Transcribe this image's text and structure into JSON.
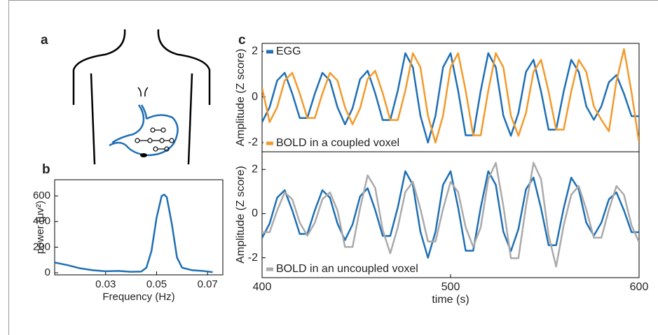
{
  "diagram": {
    "panel_label": "a"
  },
  "chart_data": [
    {
      "type": "line",
      "panel_label": "b",
      "xlabel": "Frequency (Hz)",
      "ylabel": "power (μv²)",
      "x": [
        0.01,
        0.015,
        0.02,
        0.025,
        0.03,
        0.035,
        0.04,
        0.044,
        0.046,
        0.048,
        0.05,
        0.052,
        0.053,
        0.054,
        0.056,
        0.058,
        0.06,
        0.064,
        0.068,
        0.072
      ],
      "series": [
        {
          "color": "#1f6fb4",
          "values": [
            80,
            60,
            35,
            20,
            12,
            15,
            8,
            10,
            40,
            170,
            430,
            600,
            610,
            590,
            380,
            120,
            40,
            20,
            15,
            5
          ]
        }
      ],
      "xlim": [
        0.01,
        0.076
      ],
      "ylim": [
        -16,
        726
      ],
      "xticks": [
        0.03,
        0.05,
        0.07
      ],
      "yticks": [
        0,
        200,
        400,
        600
      ]
    },
    {
      "type": "line",
      "panel_label": "c",
      "ylabel": "Amplitude (Z score)",
      "x": [
        400,
        404,
        408,
        412,
        416,
        420,
        424,
        428,
        432,
        436,
        440,
        444,
        448,
        452,
        456,
        460,
        464,
        468,
        472,
        476,
        480,
        484,
        488,
        492,
        496,
        500,
        504,
        508,
        512,
        516,
        520,
        524,
        528,
        532,
        536,
        540,
        544,
        548,
        552,
        556,
        560,
        564,
        568,
        572,
        576,
        580,
        584,
        588,
        592,
        596,
        600
      ],
      "series": [
        {
          "name": "EGG",
          "color": "#1f6fb4",
          "legend": "upper left",
          "values": [
            -1.1,
            -0.45,
            0.72,
            1.06,
            0.15,
            -0.92,
            -0.92,
            0.15,
            1.06,
            0.72,
            -0.45,
            -1.2,
            -0.49,
            0.78,
            1.15,
            0.17,
            -1.01,
            -1.01,
            0.28,
            1.92,
            1.3,
            -0.82,
            -2.0,
            -0.82,
            1.3,
            1.92,
            0.28,
            -1.68,
            -1.68,
            0.28,
            1.92,
            1.3,
            -0.82,
            -1.7,
            -0.7,
            1.1,
            1.63,
            0.24,
            -1.43,
            -1.43,
            0.24,
            1.63,
            1.1,
            -0.41,
            -1.0,
            -0.41,
            0.65,
            0.96,
            0.14,
            -0.84,
            -0.84
          ]
        },
        {
          "name": "BOLD in a coupled voxel",
          "color": "#f39a2b",
          "legend": "lower left",
          "values": [
            0.4,
            -1.1,
            -0.45,
            0.72,
            1.06,
            0.15,
            -0.92,
            -0.92,
            0.15,
            1.06,
            0.72,
            -0.45,
            -1.2,
            -0.49,
            0.78,
            1.15,
            0.17,
            -1.01,
            -1.01,
            0.28,
            1.92,
            1.3,
            -0.82,
            -2.0,
            -0.82,
            1.3,
            1.92,
            0.28,
            -1.68,
            -1.68,
            0.28,
            1.92,
            1.3,
            -0.82,
            -1.7,
            -0.7,
            1.1,
            1.63,
            0.24,
            -1.43,
            -1.43,
            0.24,
            1.63,
            1.1,
            -0.41,
            -1.0,
            -1.5,
            0.7,
            2.1,
            0.2,
            -2.0
          ]
        }
      ],
      "xlim": [
        400,
        600
      ],
      "ylim": [
        -2.4,
        2.35
      ],
      "yticks": [
        -2,
        0,
        2
      ]
    },
    {
      "type": "line",
      "ylabel": "Amplitude (Z score)",
      "xlabel": "time (s)",
      "x": [
        400,
        404,
        408,
        412,
        416,
        420,
        424,
        428,
        432,
        436,
        440,
        444,
        448,
        452,
        456,
        460,
        464,
        468,
        472,
        476,
        480,
        484,
        488,
        492,
        496,
        500,
        504,
        508,
        512,
        516,
        520,
        524,
        528,
        532,
        536,
        540,
        544,
        548,
        552,
        556,
        560,
        564,
        568,
        572,
        576,
        580,
        584,
        588,
        592,
        596,
        600
      ],
      "series": [
        {
          "color": "#1f6fb4",
          "values": [
            -1.1,
            -0.45,
            0.72,
            1.06,
            0.15,
            -0.92,
            -0.92,
            0.15,
            1.06,
            0.72,
            -0.45,
            -1.2,
            -0.49,
            0.78,
            1.15,
            0.17,
            -1.01,
            -1.01,
            0.28,
            1.92,
            1.3,
            -0.82,
            -2.0,
            -0.82,
            1.3,
            1.92,
            0.28,
            -1.68,
            -1.68,
            0.28,
            1.92,
            1.3,
            -0.82,
            -1.7,
            -0.7,
            1.1,
            1.63,
            0.24,
            -1.43,
            -1.43,
            0.24,
            1.63,
            1.1,
            -0.41,
            -1.0,
            -0.41,
            0.65,
            0.96,
            0.14,
            -0.84,
            -0.84
          ]
        },
        {
          "name": "BOLD in an uncoupled voxel",
          "color": "#aaaaaa",
          "legend": "lower left",
          "values": [
            -0.84,
            -0.84,
            0.14,
            0.96,
            0.65,
            -0.41,
            -1.0,
            -0.41,
            0.65,
            0.96,
            0.14,
            -1.51,
            -1.51,
            0.25,
            1.73,
            1.17,
            -0.74,
            -1.8,
            -0.62,
            0.98,
            1.44,
            0.21,
            -1.26,
            -1.26,
            0.21,
            1.44,
            0.98,
            -0.62,
            -1.5,
            -0.62,
            1.56,
            2.3,
            0.34,
            -2.02,
            -2.02,
            0.34,
            2.3,
            1.56,
            -0.98,
            -2.4,
            -0.53,
            0.85,
            1.25,
            0.18,
            -1.09,
            -1.09,
            0.18,
            1.25,
            0.85,
            -0.53,
            -1.3
          ]
        }
      ],
      "xlim": [
        400,
        600
      ],
      "ylim": [
        -2.9,
        2.8
      ],
      "xticks": [
        400,
        500,
        600
      ],
      "yticks": [
        -2,
        0,
        2
      ]
    }
  ]
}
